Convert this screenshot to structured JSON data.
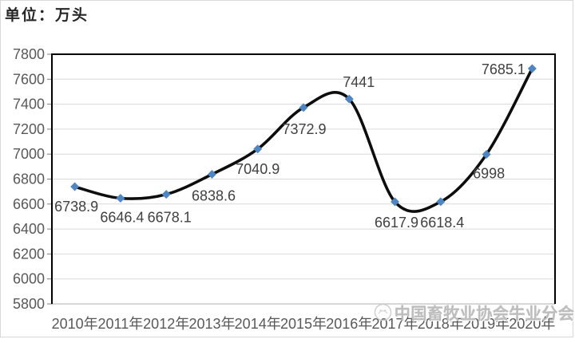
{
  "chart_data": {
    "type": "line",
    "unit_label": "单位：万头",
    "categories": [
      "2010年",
      "2011年",
      "2012年",
      "2013年",
      "2014年",
      "2015年",
      "2016年",
      "2017年",
      "2018年",
      "2019年",
      "2020年"
    ],
    "values": [
      6738.9,
      6646.4,
      6678.1,
      6838.6,
      7040.9,
      7372.9,
      7441,
      6617.9,
      6618.4,
      6998,
      7685.1
    ],
    "data_labels": [
      "6738.9",
      "6646.4",
      "6678.1",
      "6838.6",
      "7040.9",
      "7372.9",
      "7441",
      "6617.9",
      "6618.4",
      "6998",
      "7685.1"
    ],
    "ylim": [
      5800,
      7800
    ],
    "ytick_step": 200,
    "yticks": [
      7800,
      7600,
      7400,
      7200,
      7000,
      6800,
      6600,
      6400,
      6200,
      6000,
      5800
    ],
    "grid": true,
    "smooth": true,
    "legend": "none",
    "line_color": "#0d0d0d",
    "marker": "diamond",
    "marker_color": "#4e86c4",
    "gridline_color": "#d9d9d9",
    "axis_line_color": "#bfbfbf",
    "border_color": "#000000",
    "axis_label_color": "#595959",
    "data_label_color": "#404040"
  },
  "watermark": {
    "text": "中国畜牧业协会牛业分会",
    "logo": "association-ring-logo"
  }
}
